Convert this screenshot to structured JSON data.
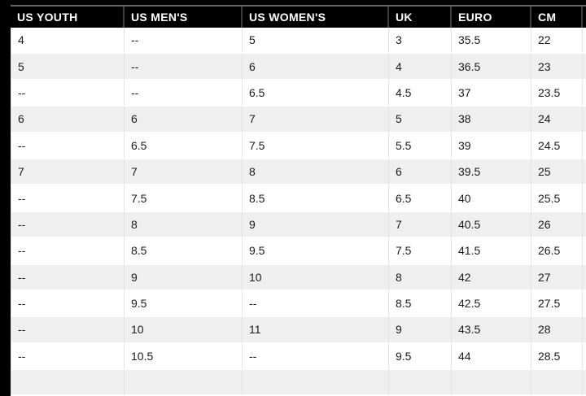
{
  "page": {
    "background": "#000000"
  },
  "size_chart": {
    "headers": [
      "US YOUTH",
      "US MEN'S",
      "US WOMEN'S",
      "UK",
      "EURO",
      "CM"
    ],
    "rows": [
      [
        "4",
        "--",
        "5",
        "3",
        "35.5",
        "22"
      ],
      [
        "5",
        "--",
        "6",
        "4",
        "36.5",
        "23"
      ],
      [
        "--",
        "--",
        "6.5",
        "4.5",
        "37",
        "23.5"
      ],
      [
        "6",
        "6",
        "7",
        "5",
        "38",
        "24"
      ],
      [
        "--",
        "6.5",
        "7.5",
        "5.5",
        "39",
        "24.5"
      ],
      [
        "7",
        "7",
        "8",
        "6",
        "39.5",
        "25"
      ],
      [
        "--",
        "7.5",
        "8.5",
        "6.5",
        "40",
        "25.5"
      ],
      [
        "--",
        "8",
        "9",
        "7",
        "40.5",
        "26"
      ],
      [
        "--",
        "8.5",
        "9.5",
        "7.5",
        "41.5",
        "26.5"
      ],
      [
        "--",
        "9",
        "10",
        "8",
        "42",
        "27"
      ],
      [
        "--",
        "9.5",
        "--",
        "8.5",
        "42.5",
        "27.5"
      ],
      [
        "--",
        "10",
        "11",
        "9",
        "43.5",
        "28"
      ],
      [
        "--",
        "10.5",
        "--",
        "9.5",
        "44",
        "28.5"
      ]
    ],
    "empty_value_marker": "--",
    "partial_next_row_visible": true
  },
  "colors": {
    "page_bg": "#000000",
    "header_bg": "#000000",
    "header_text": "#ffffff",
    "header_divider": "#3d3d3d",
    "table_top_border": "#666666",
    "row_bg": "#ffffff",
    "row_alt_bg": "#efefef",
    "cell_divider": "#e2e2e2",
    "cell_text": "#1a1a1a"
  }
}
